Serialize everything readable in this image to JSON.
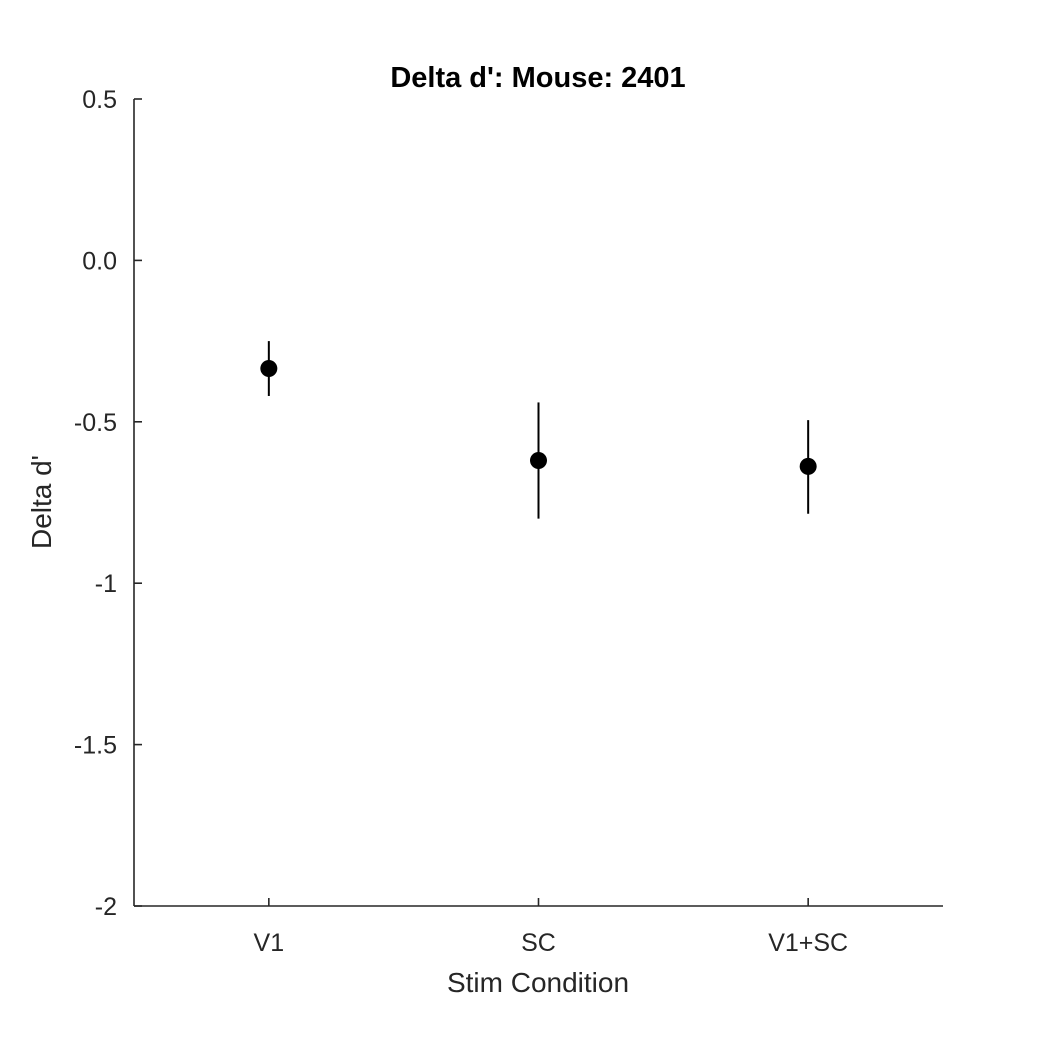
{
  "chart_data": {
    "type": "scatter",
    "title": "Delta d': Mouse: 2401",
    "xlabel": "Stim Condition",
    "ylabel": "Delta d'",
    "categories": [
      "V1",
      "SC",
      "V1+SC"
    ],
    "series": [
      {
        "values": [
          -0.335,
          -0.62,
          -0.638
        ],
        "error_low": [
          -0.42,
          -0.8,
          -0.785
        ],
        "error_high": [
          -0.25,
          -0.44,
          -0.495
        ],
        "color": "#000000"
      }
    ],
    "ylim": [
      -2,
      0.5
    ],
    "yticks": [
      "-2",
      "-1.5",
      "-1",
      "-0.5",
      "0.0",
      "0.5"
    ],
    "grid": false,
    "legend": "none"
  }
}
